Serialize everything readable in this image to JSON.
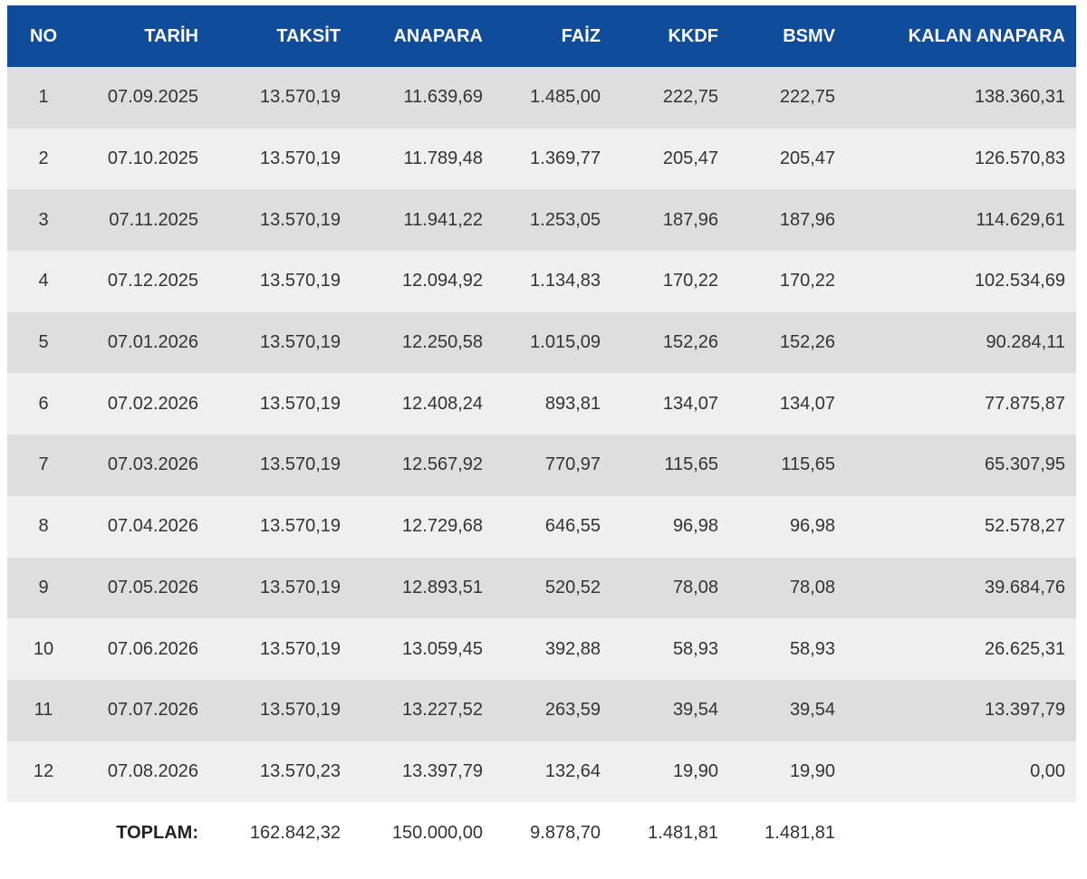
{
  "table": {
    "headers": {
      "no": "NO",
      "tarih": "TARİH",
      "taksit": "TAKSİT",
      "anapara": "ANAPARA",
      "faiz": "FAİZ",
      "kkdf": "KKDF",
      "bsmv": "BSMV",
      "kalan_anapara": "KALAN ANAPARA"
    },
    "rows": [
      {
        "no": "1",
        "tarih": "07.09.2025",
        "taksit": "13.570,19",
        "anapara": "11.639,69",
        "faiz": "1.485,00",
        "kkdf": "222,75",
        "bsmv": "222,75",
        "kalan_anapara": "138.360,31"
      },
      {
        "no": "2",
        "tarih": "07.10.2025",
        "taksit": "13.570,19",
        "anapara": "11.789,48",
        "faiz": "1.369,77",
        "kkdf": "205,47",
        "bsmv": "205,47",
        "kalan_anapara": "126.570,83"
      },
      {
        "no": "3",
        "tarih": "07.11.2025",
        "taksit": "13.570,19",
        "anapara": "11.941,22",
        "faiz": "1.253,05",
        "kkdf": "187,96",
        "bsmv": "187,96",
        "kalan_anapara": "114.629,61"
      },
      {
        "no": "4",
        "tarih": "07.12.2025",
        "taksit": "13.570,19",
        "anapara": "12.094,92",
        "faiz": "1.134,83",
        "kkdf": "170,22",
        "bsmv": "170,22",
        "kalan_anapara": "102.534,69"
      },
      {
        "no": "5",
        "tarih": "07.01.2026",
        "taksit": "13.570,19",
        "anapara": "12.250,58",
        "faiz": "1.015,09",
        "kkdf": "152,26",
        "bsmv": "152,26",
        "kalan_anapara": "90.284,11"
      },
      {
        "no": "6",
        "tarih": "07.02.2026",
        "taksit": "13.570,19",
        "anapara": "12.408,24",
        "faiz": "893,81",
        "kkdf": "134,07",
        "bsmv": "134,07",
        "kalan_anapara": "77.875,87"
      },
      {
        "no": "7",
        "tarih": "07.03.2026",
        "taksit": "13.570,19",
        "anapara": "12.567,92",
        "faiz": "770,97",
        "kkdf": "115,65",
        "bsmv": "115,65",
        "kalan_anapara": "65.307,95"
      },
      {
        "no": "8",
        "tarih": "07.04.2026",
        "taksit": "13.570,19",
        "anapara": "12.729,68",
        "faiz": "646,55",
        "kkdf": "96,98",
        "bsmv": "96,98",
        "kalan_anapara": "52.578,27"
      },
      {
        "no": "9",
        "tarih": "07.05.2026",
        "taksit": "13.570,19",
        "anapara": "12.893,51",
        "faiz": "520,52",
        "kkdf": "78,08",
        "bsmv": "78,08",
        "kalan_anapara": "39.684,76"
      },
      {
        "no": "10",
        "tarih": "07.06.2026",
        "taksit": "13.570,19",
        "anapara": "13.059,45",
        "faiz": "392,88",
        "kkdf": "58,93",
        "bsmv": "58,93",
        "kalan_anapara": "26.625,31"
      },
      {
        "no": "11",
        "tarih": "07.07.2026",
        "taksit": "13.570,19",
        "anapara": "13.227,52",
        "faiz": "263,59",
        "kkdf": "39,54",
        "bsmv": "39,54",
        "kalan_anapara": "13.397,79"
      },
      {
        "no": "12",
        "tarih": "07.08.2026",
        "taksit": "13.570,23",
        "anapara": "13.397,79",
        "faiz": "132,64",
        "kkdf": "19,90",
        "bsmv": "19,90",
        "kalan_anapara": "0,00"
      }
    ],
    "totals": {
      "label": "TOPLAM:",
      "taksit": "162.842,32",
      "anapara": "150.000,00",
      "faiz": "9.878,70",
      "kkdf": "1.481,81",
      "bsmv": "1.481,81"
    },
    "colors": {
      "header_bg": "#0f4c9c",
      "header_text": "#ffffff",
      "row_dark": "#dedede",
      "row_light": "#efefef",
      "text": "#333333"
    }
  }
}
